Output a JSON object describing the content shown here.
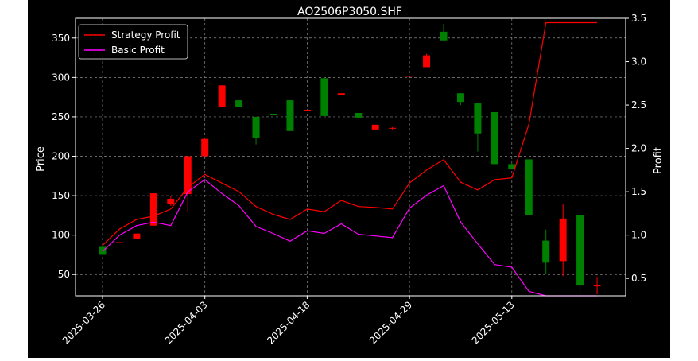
{
  "chart_data": {
    "type": "candlestick",
    "title": "AO2506P3050.SHF",
    "ylabel_left": "Price",
    "ylabel_right": "Profit",
    "ylim_left": [
      23,
      375
    ],
    "ylim_right": [
      0.3,
      3.5
    ],
    "x_tick_labels": [
      "2025-03-26",
      "2025-04-03",
      "2025-04-18",
      "2025-04-29",
      "2025-05-13"
    ],
    "x_tick_index": [
      0,
      6,
      12,
      18,
      24
    ],
    "y_ticks_left": [
      50,
      100,
      150,
      200,
      250,
      300,
      350
    ],
    "y_ticks_right": [
      "0.5",
      "1.0",
      "1.5",
      "2.0",
      "2.5",
      "3.0",
      "3.5"
    ],
    "grid": true,
    "legend_position": "top-left",
    "colors": {
      "up": "#ff0000",
      "down": "#008000",
      "strategy": "#ff0000",
      "basic": "#ff00ff",
      "background": "#000000",
      "axes": "#ffffff"
    },
    "candles": [
      {
        "o": 85,
        "h": 87,
        "l": 75,
        "c": 75
      },
      {
        "o": 91,
        "h": 91,
        "l": 91,
        "c": 91
      },
      {
        "o": 95,
        "h": 102,
        "l": 95,
        "c": 102
      },
      {
        "o": 112,
        "h": 153,
        "l": 112,
        "c": 153
      },
      {
        "o": 140,
        "h": 149,
        "l": 137,
        "c": 146
      },
      {
        "o": 152,
        "h": 200,
        "l": 130,
        "c": 200
      },
      {
        "o": 200,
        "h": 222,
        "l": 200,
        "c": 222
      },
      {
        "o": 263,
        "h": 290,
        "l": 263,
        "c": 290
      },
      {
        "o": 271,
        "h": 271,
        "l": 263,
        "c": 263
      },
      {
        "o": 250,
        "h": 250,
        "l": 215,
        "c": 223
      },
      {
        "o": 254,
        "h": 254,
        "l": 252,
        "c": 252
      },
      {
        "o": 271,
        "h": 271,
        "l": 232,
        "c": 232
      },
      {
        "o": 259,
        "h": 259,
        "l": 259,
        "c": 259
      },
      {
        "o": 299,
        "h": 299,
        "l": 251,
        "c": 251
      },
      {
        "o": 278,
        "h": 280,
        "l": 278,
        "c": 280
      },
      {
        "o": 255,
        "h": 255,
        "l": 249,
        "c": 249
      },
      {
        "o": 234,
        "h": 240,
        "l": 234,
        "c": 240
      },
      {
        "o": 235,
        "h": 237,
        "l": 234,
        "c": 236
      },
      {
        "o": 302,
        "h": 302,
        "l": 302,
        "c": 302
      },
      {
        "o": 313,
        "h": 330,
        "l": 313,
        "c": 328
      },
      {
        "o": 358,
        "h": 368,
        "l": 347,
        "c": 347
      },
      {
        "o": 280,
        "h": 280,
        "l": 265,
        "c": 269
      },
      {
        "o": 267,
        "h": 267,
        "l": 206,
        "c": 229
      },
      {
        "o": 256,
        "h": 256,
        "l": 190,
        "c": 190
      },
      {
        "o": 190,
        "h": 191,
        "l": 184,
        "c": 184
      },
      {
        "o": 196,
        "h": 196,
        "l": 125,
        "c": 125
      },
      {
        "o": 93,
        "h": 107,
        "l": 51,
        "c": 65
      },
      {
        "o": 67,
        "h": 140,
        "l": 48,
        "c": 121
      },
      {
        "o": 125,
        "h": 125,
        "l": 25,
        "c": 36
      },
      {
        "o": 36,
        "h": 47,
        "l": 25,
        "c": 36
      }
    ],
    "series": [
      {
        "name": "Strategy Profit",
        "values": [
          0.88,
          1.07,
          1.18,
          1.22,
          1.3,
          1.55,
          1.7,
          1.6,
          1.5,
          1.33,
          1.24,
          1.18,
          1.3,
          1.27,
          1.4,
          1.33,
          1.32,
          1.3,
          1.6,
          1.75,
          1.87,
          1.61,
          1.52,
          1.64,
          1.66,
          2.28,
          3.45,
          3.45,
          3.45,
          3.45
        ]
      },
      {
        "name": "Basic Profit",
        "values": [
          0.81,
          1.0,
          1.11,
          1.15,
          1.11,
          1.5,
          1.64,
          1.48,
          1.34,
          1.1,
          1.02,
          0.93,
          1.05,
          1.02,
          1.13,
          1.01,
          0.99,
          0.97,
          1.31,
          1.46,
          1.57,
          1.15,
          0.9,
          0.66,
          0.63,
          0.35,
          0.3,
          0.3,
          0.3,
          0.3
        ]
      }
    ]
  }
}
